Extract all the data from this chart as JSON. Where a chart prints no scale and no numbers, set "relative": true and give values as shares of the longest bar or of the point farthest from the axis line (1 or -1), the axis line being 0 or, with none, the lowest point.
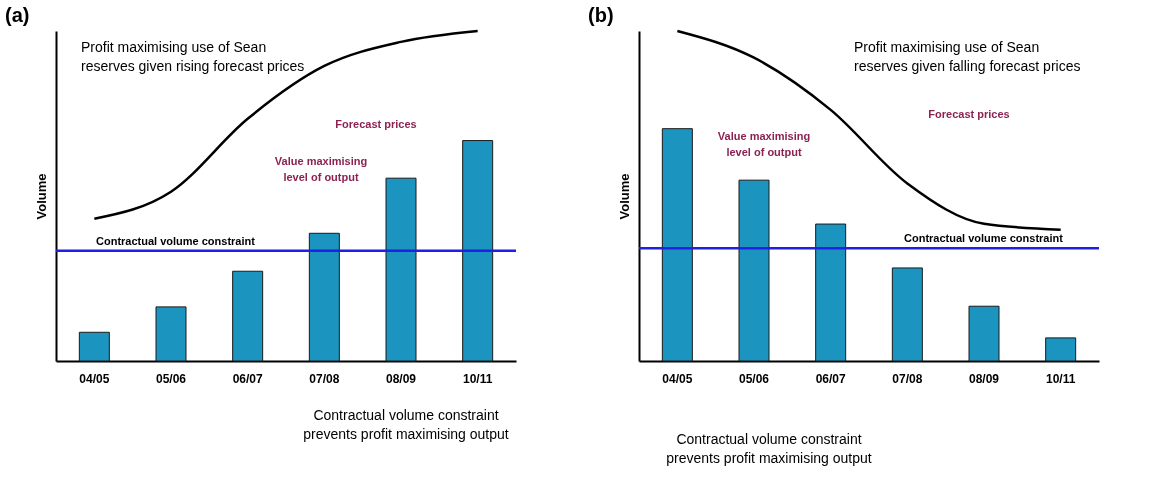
{
  "chart_data": [
    {
      "type": "bar",
      "title": "(a)",
      "ylabel": "Volume",
      "relative": true,
      "categories": [
        "04/05",
        "05/06",
        "06/07",
        "07/08",
        "08/09",
        "10/11"
      ],
      "grid": false,
      "series": [
        {
          "color": "#1b95bf",
          "values": [
            0.087,
            0.164,
            0.272,
            0.387,
            0.554,
            0.668
          ]
        },
        {
          "type": "line",
          "color": "#000000",
          "values": [
            0.431,
            0.513,
            0.734,
            0.894,
            0.967,
            1.0
          ]
        }
      ],
      "ref_lines": [
        {
          "axis": "y",
          "value": 0.334,
          "label": "Contractual volume constraint",
          "color": "#1f1fe6"
        }
      ],
      "annotations": [
        "Profit maximising use of Sean\nreserves given rising forecast prices",
        "Forecast prices",
        "Value maximising\nlevel of output",
        "Contractual volume constraint\nprevents profit maximising output"
      ]
    },
    {
      "type": "bar",
      "title": "(b)",
      "ylabel": "Volume",
      "relative": true,
      "categories": [
        "04/05",
        "05/06",
        "06/07",
        "07/08",
        "08/09",
        "10/11"
      ],
      "grid": false,
      "series": [
        {
          "color": "#1b95bf",
          "values": [
            0.704,
            0.548,
            0.415,
            0.282,
            0.166,
            0.07
          ]
        },
        {
          "type": "line",
          "color": "#000000",
          "values": [
            1.0,
            0.919,
            0.761,
            0.538,
            0.416,
            0.398
          ]
        }
      ],
      "ref_lines": [
        {
          "axis": "y",
          "value": 0.342,
          "label": "Contractual volume constraint",
          "color": "#1f1fe6"
        }
      ],
      "annotations": [
        "Profit maximising use of Sean\nreserves given falling forecast prices",
        "Forecast prices",
        "Value maximising\nlevel of output",
        "Contractual volume constraint\nprevents profit maximising output"
      ]
    }
  ]
}
